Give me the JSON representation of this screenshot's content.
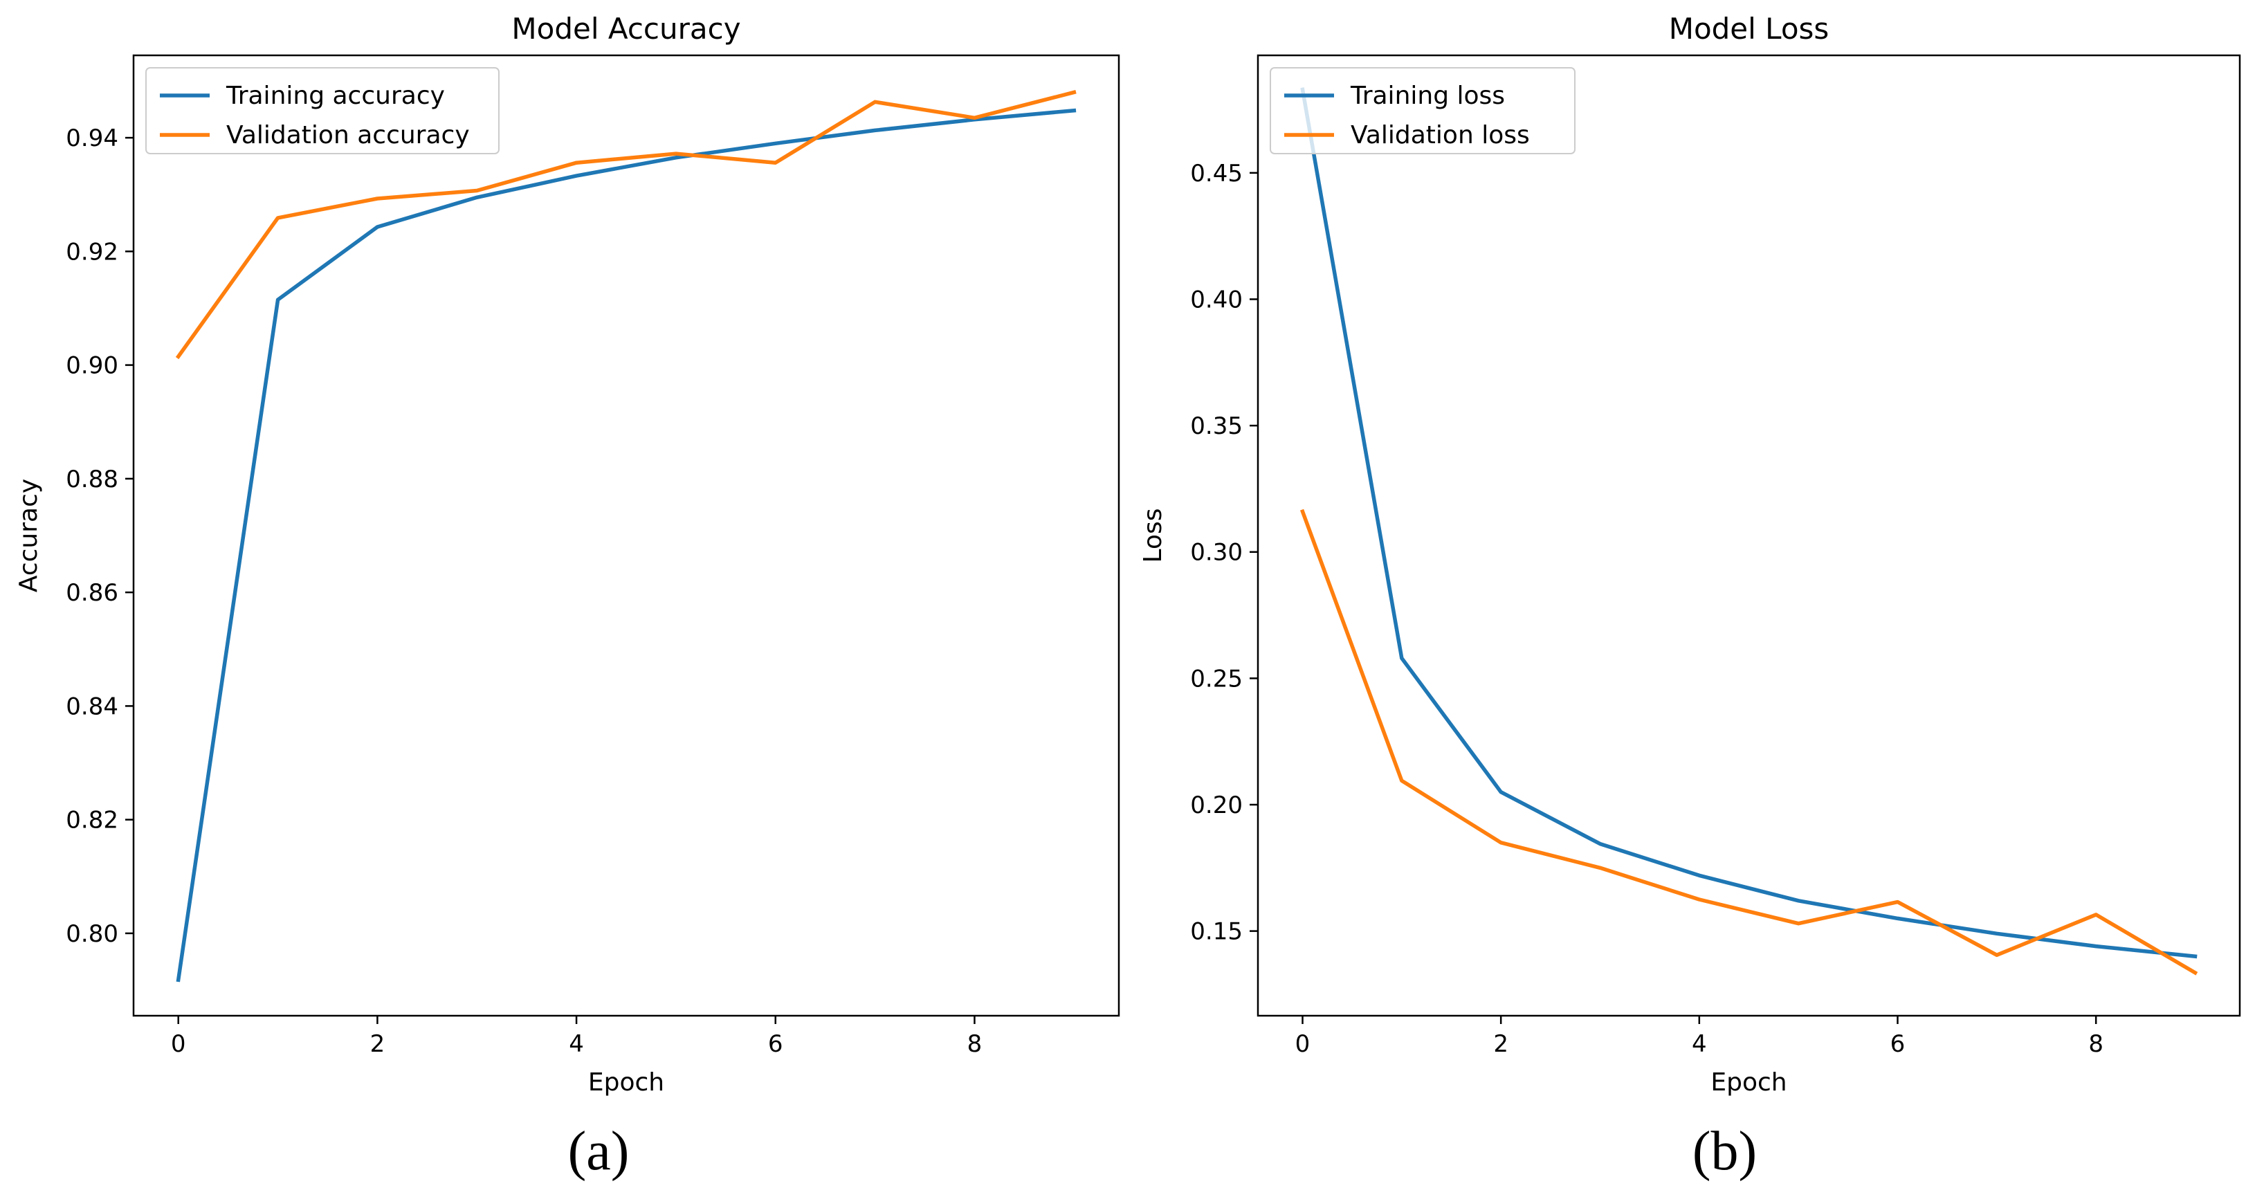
{
  "chart_data": [
    {
      "type": "line",
      "title": "Model Accuracy",
      "xlabel": "Epoch",
      "ylabel": "Accuracy",
      "panel_label": "(a)",
      "xlim": [
        -0.45,
        9.45
      ],
      "ylim": [
        0.7855,
        0.9545
      ],
      "xticks": [
        0,
        2,
        4,
        6,
        8
      ],
      "yticks": [
        0.8,
        0.82,
        0.84,
        0.86,
        0.88,
        0.9,
        0.92,
        0.94
      ],
      "ytick_decimals": 2,
      "grid": false,
      "legend_position": "upper-left",
      "x": [
        0,
        1,
        2,
        3,
        4,
        5,
        6,
        7,
        8,
        9
      ],
      "series": [
        {
          "name": "Training accuracy",
          "color": "#1f77b4",
          "values": [
            0.7918,
            0.9115,
            0.9243,
            0.9295,
            0.9333,
            0.9365,
            0.939,
            0.9413,
            0.9432,
            0.9448
          ]
        },
        {
          "name": "Validation accuracy",
          "color": "#ff7f0e",
          "values": [
            0.9015,
            0.9259,
            0.9293,
            0.9307,
            0.9356,
            0.9372,
            0.9356,
            0.9463,
            0.9435,
            0.948
          ]
        }
      ]
    },
    {
      "type": "line",
      "title": "Model Loss",
      "xlabel": "Epoch",
      "ylabel": "Loss",
      "panel_label": "(b)",
      "xlim": [
        -0.45,
        9.45
      ],
      "ylim": [
        0.1165,
        0.4965
      ],
      "xticks": [
        0,
        2,
        4,
        6,
        8
      ],
      "yticks": [
        0.15,
        0.2,
        0.25,
        0.3,
        0.35,
        0.4,
        0.45
      ],
      "ytick_decimals": 2,
      "grid": false,
      "legend_position": "upper-left",
      "x": [
        0,
        1,
        2,
        3,
        4,
        5,
        6,
        7,
        8,
        9
      ],
      "series": [
        {
          "name": "Training loss",
          "color": "#1f77b4",
          "values": [
            0.483,
            0.258,
            0.205,
            0.1845,
            0.172,
            0.162,
            0.155,
            0.149,
            0.144,
            0.14
          ]
        },
        {
          "name": "Validation loss",
          "color": "#ff7f0e",
          "values": [
            0.316,
            0.2095,
            0.185,
            0.175,
            0.1625,
            0.153,
            0.1615,
            0.1405,
            0.1565,
            0.1335
          ]
        }
      ]
    }
  ]
}
